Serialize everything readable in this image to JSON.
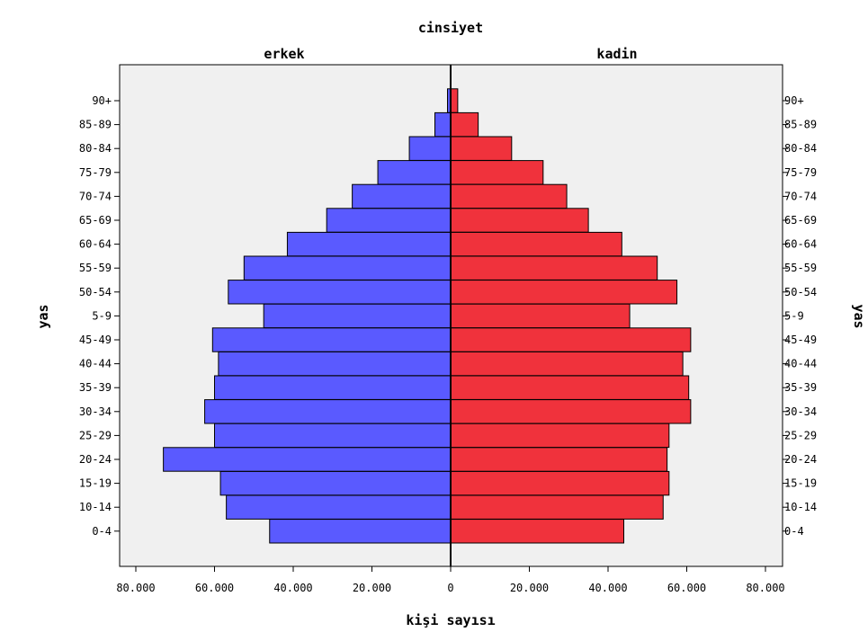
{
  "chart_data": {
    "type": "bar",
    "title": "cinsiyet",
    "xlabel": "kişi sayısı",
    "ylabel": "yas",
    "categories": [
      "0-4",
      "10-14",
      "15-19",
      "20-24",
      "25-29",
      "30-34",
      "35-39",
      "40-44",
      "45-49",
      "5-9",
      "50-54",
      "55-59",
      "60-64",
      "65-69",
      "70-74",
      "75-79",
      "80-84",
      "85-89",
      "90+"
    ],
    "series": [
      {
        "name": "erkek",
        "color": "#5a5aff",
        "values": [
          46000,
          57000,
          58500,
          73000,
          60000,
          62500,
          60000,
          59000,
          60500,
          47500,
          56500,
          52500,
          41500,
          31500,
          25000,
          18500,
          10500,
          4000,
          800
        ]
      },
      {
        "name": "kadin",
        "color": "#f0323c",
        "values": [
          44000,
          54000,
          55500,
          55000,
          55500,
          61000,
          60500,
          59000,
          61000,
          45500,
          57500,
          52500,
          43500,
          35000,
          29500,
          23500,
          15500,
          7000,
          1800
        ]
      }
    ],
    "xlim": [
      -80000,
      80000
    ],
    "xticks": [
      "80.000",
      "60.000",
      "40.000",
      "20.000",
      "0",
      "20.000",
      "40.000",
      "60.000",
      "80.000"
    ],
    "xtick_values": [
      -80000,
      -60000,
      -40000,
      -20000,
      0,
      20000,
      40000,
      60000,
      80000
    ],
    "grid": false,
    "colors": {
      "plot_background": "#f0f0f0",
      "male": "#5a5aff",
      "female": "#f0323c",
      "axis": "#000000"
    }
  }
}
